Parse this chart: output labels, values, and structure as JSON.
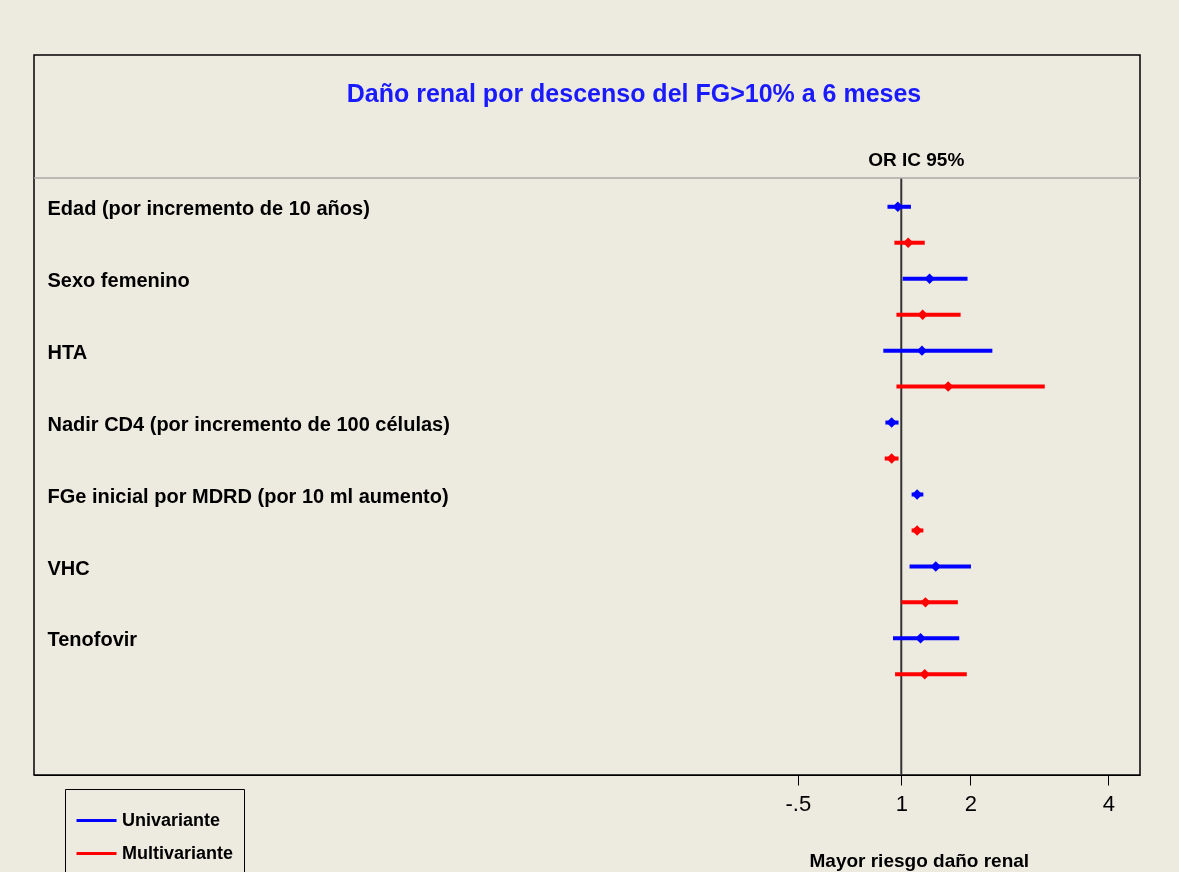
{
  "chart_data": {
    "type": "scatter",
    "title": "Daño renal por descenso del FG>10% a 6 meses",
    "xlabel": "Mayor riesgo daño renal",
    "categories": [
      "Edad (por incremento de 10 años)",
      "Sexo femenino",
      "HTA",
      "Nadir CD4 (por incremento de 100 células)",
      "FGe inicial por MDRD (por 10 ml aumento)",
      "VHC",
      "Tenofovir"
    ],
    "series": [
      {
        "name": "Univariante",
        "color": "#0000ff",
        "values": [
          0.95,
          1.41,
          1.3,
          0.86,
          1.23,
          1.5,
          1.28
        ],
        "errors": [
          [
            0.8,
            1.14
          ],
          [
            1.02,
            1.96
          ],
          [
            0.74,
            2.32
          ],
          [
            0.77,
            0.96
          ],
          [
            1.15,
            1.32
          ],
          [
            1.12,
            2.01
          ],
          [
            0.88,
            1.84
          ]
        ]
      },
      {
        "name": "Multivariante",
        "color": "#ff0000",
        "values": [
          1.1,
          1.31,
          1.68,
          0.86,
          1.23,
          1.35,
          1.34
        ],
        "errors": [
          [
            0.9,
            1.34
          ],
          [
            0.93,
            1.86
          ],
          [
            0.93,
            3.08
          ],
          [
            0.76,
            0.96
          ],
          [
            1.15,
            1.32
          ],
          [
            1.0,
            1.82
          ],
          [
            0.91,
            1.95
          ]
        ]
      }
    ],
    "orientation": "horizontal",
    "xlim": [
      -11.57,
      4.46
    ],
    "xticks": [
      {
        "value": -0.5,
        "label": "-.5"
      },
      1,
      2,
      4
    ],
    "ref_lines": [
      {
        "axis": "x",
        "value": 1
      }
    ],
    "annotations": [
      "OR IC 95%"
    ],
    "marker": "diamond",
    "grid": false,
    "legend": "bottom left"
  }
}
